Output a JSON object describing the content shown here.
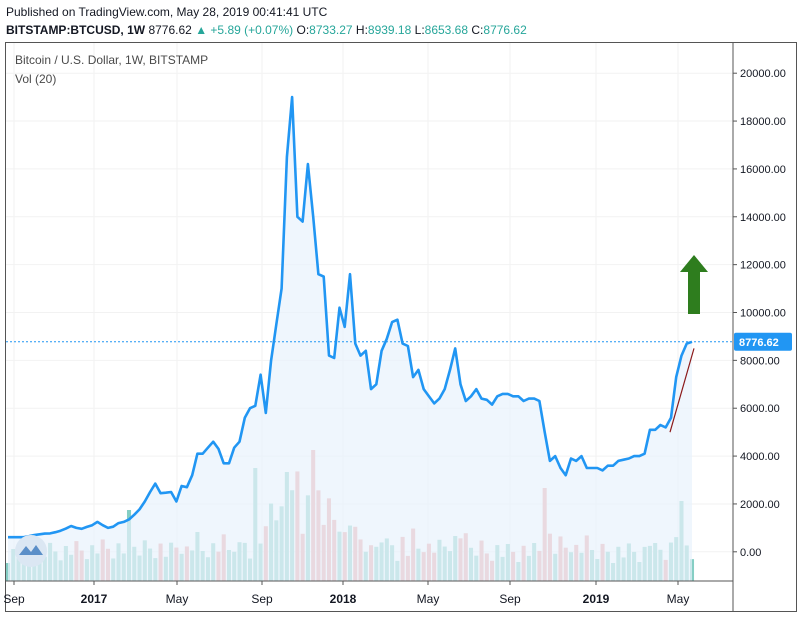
{
  "header": {
    "published": "Published on TradingView.com, May 28, 2019 00:41:41 UTC",
    "symbol": "BITSTAMP:BTCUSD, 1W",
    "last": "8776.62",
    "change": "+5.89 (+0.07%)",
    "o_label": "O:",
    "o_value": "8733.27",
    "h_label": "H:",
    "h_value": "8939.18",
    "l_label": "L:",
    "l_value": "8653.68",
    "c_label": "C:",
    "c_value": "8776.62"
  },
  "chart_title": "Bitcoin / U.S. Dollar, 1W, BITSTAMP",
  "volume_label": "Vol (20)",
  "colors": {
    "price_line": "#2196f3",
    "price_area": "#e8f2fc",
    "vol_up": "#85cec4",
    "vol_down": "#ec9e9e",
    "last_price_tag": "#2196f3",
    "trend_line": "#8b1a1a",
    "arrow": "#2e7d1e"
  },
  "last_price_tag": "8776.62",
  "chart_data": {
    "type": "line",
    "title": "Bitcoin / U.S. Dollar, 1W, BITSTAMP",
    "ylim": [
      -1000,
      21000
    ],
    "y_ticks": [
      "20000.00",
      "18000.00",
      "16000.00",
      "14000.00",
      "12000.00",
      "10000.00",
      "8000.00",
      "6000.00",
      "4000.00",
      "2000.00",
      "0.00"
    ],
    "x_ticks": [
      {
        "label": "Sep",
        "bold": false
      },
      {
        "label": "2017",
        "bold": true
      },
      {
        "label": "May",
        "bold": false
      },
      {
        "label": "Sep",
        "bold": false
      },
      {
        "label": "2018",
        "bold": true
      },
      {
        "label": "May",
        "bold": false
      },
      {
        "label": "Sep",
        "bold": false
      },
      {
        "label": "2019",
        "bold": true
      },
      {
        "label": "May",
        "bold": false
      }
    ],
    "series": [
      {
        "values": [
          610,
          610,
          610,
          610,
          650,
          700,
          730,
          760,
          770,
          820,
          880,
          970,
          1080,
          1000,
          960,
          1040,
          1110,
          1250,
          1110,
          1000,
          1050,
          1200,
          1250,
          1350,
          1550,
          1770,
          2100,
          2500,
          2850,
          2450,
          2470,
          2500,
          2100,
          2750,
          2700,
          3200,
          4100,
          4100,
          4350,
          4600,
          4300,
          3700,
          3700,
          4350,
          4600,
          5600,
          6000,
          6100,
          7400,
          5800,
          8000,
          9500,
          11000,
          16500,
          19000,
          14000,
          13800,
          16200,
          14000,
          11600,
          11500,
          8200,
          8100,
          10200,
          9400,
          11600,
          8700,
          8200,
          8400,
          6800,
          7000,
          8400,
          8900,
          9600,
          9700,
          8700,
          8600,
          7300,
          7600,
          6800,
          6500,
          6200,
          6400,
          6800,
          7600,
          8500,
          7000,
          6300,
          6500,
          6800,
          6400,
          6350,
          6150,
          6500,
          6600,
          6600,
          6500,
          6500,
          6300,
          6400,
          6400,
          6300,
          5000,
          3800,
          4000,
          3500,
          3200,
          3900,
          3800,
          4000,
          3500,
          3500,
          3500,
          3400,
          3600,
          3600,
          3800,
          3850,
          3900,
          4000,
          4000,
          4100,
          5100,
          5100,
          5300,
          5200,
          5600,
          7300,
          8200,
          8700,
          8777
        ]
      }
    ],
    "volume_pattern": "green and red weekly volume bars beneath the price series",
    "annotations": [
      "upward green arrow near 12000",
      "dark red trend line rising into May 2019"
    ]
  }
}
